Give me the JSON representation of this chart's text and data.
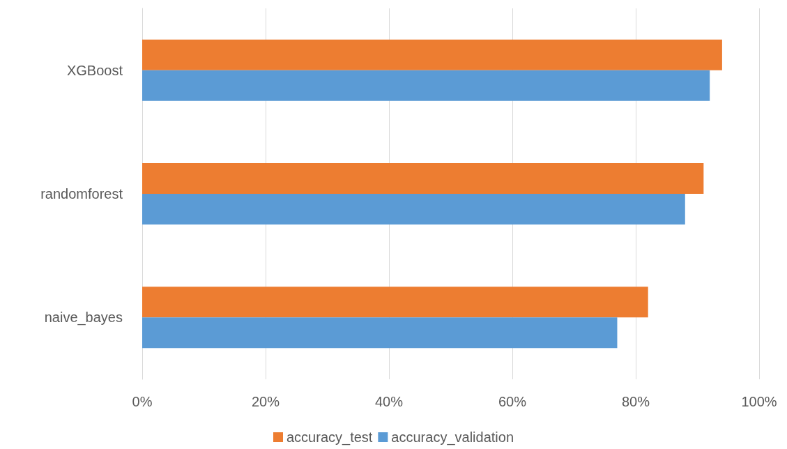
{
  "chart_data": {
    "type": "bar",
    "orientation": "horizontal",
    "categories": [
      "XGBoost",
      "randomforest",
      "naive_bayes"
    ],
    "series": [
      {
        "name": "accuracy_test",
        "color": "#ed7d31",
        "values": [
          94,
          91,
          82
        ]
      },
      {
        "name": "accuracy_validation",
        "color": "#5b9bd5",
        "values": [
          92,
          88,
          77
        ]
      }
    ],
    "xlim": [
      0,
      100
    ],
    "xticks": [
      {
        "value": 0,
        "label": "0%"
      },
      {
        "value": 20,
        "label": "20%"
      },
      {
        "value": 40,
        "label": "40%"
      },
      {
        "value": 60,
        "label": "60%"
      },
      {
        "value": 80,
        "label": "80%"
      },
      {
        "value": 100,
        "label": "100%"
      }
    ],
    "grid": "x",
    "legend": "bottom"
  }
}
